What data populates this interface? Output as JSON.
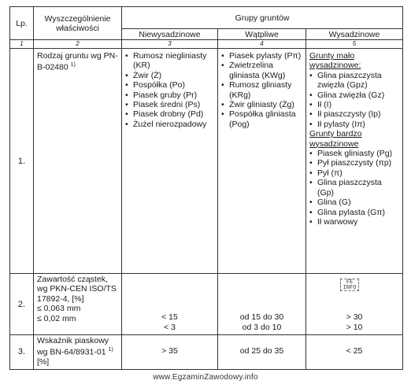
{
  "headers": {
    "lp": "Lp.",
    "properties": "Wyszczególnienie właściwości",
    "soil_groups": "Grupy gruntów",
    "col_non_frost": "Niewysadzinowe",
    "col_doubtful": "Wątpliwe",
    "col_frost": "Wysadzinowe"
  },
  "column_numbers": [
    "1",
    "2",
    "3",
    "4",
    "5"
  ],
  "rows": [
    {
      "lp": "1.",
      "property": "Rodzaj gruntu wg PN-B-02480",
      "property_sup": "1)",
      "non_frost": [
        "Rumosz niegliniasty (KR)",
        "Żwir (Ż)",
        "Pospółka (Po)",
        "Piasek gruby (Pr)",
        "Piasek średni (Ps)",
        "Piasek drobny (Pd)",
        "Żużel nierozpadowy"
      ],
      "doubtful": [
        "Piasek pylasty (Pπ)",
        "Zwietrzelina gliniasta (KWg)",
        "Rumosz gliniasty (KRg)",
        "Żwir gliniasty (Żg)",
        "Pospółka gliniasta (Pog)"
      ],
      "frost_low_heading": "Grunty mało wysadzinowe:",
      "frost_low": [
        "Glina piaszczysta zwięzła (Gpz)",
        "Glina zwięzła (Gz)",
        "Ił (I)",
        "Ił piaszczysty (Ip)",
        "Ił pylasty (Iπ)"
      ],
      "frost_high_heading": "Grunty bardzo wysadzinowe",
      "frost_high": [
        "Piasek gliniasty (Pg)",
        "Pył piaszczysty (πp)",
        "Pył (π)",
        "Glina piaszczysta (Gp)",
        "Glina (G)",
        "Glina pylasta (Gπ)",
        "Ił warwowy"
      ]
    },
    {
      "lp": "2.",
      "property_lines": [
        "Zawartość cząstek,",
        "wg PKN-CEN ISO/TS",
        "17892-4, [%]",
        "≤ 0,063 mm",
        "≤ 0,02 mm"
      ],
      "non_frost": [
        "< 15",
        "< 3"
      ],
      "doubtful": [
        "od 15 do 30",
        "od 3 do 10"
      ],
      "frost": [
        "> 30",
        "> 10"
      ]
    },
    {
      "lp": "3.",
      "property": "Wskaźnik piaskowy wg BN-64/8931-01",
      "property_sup": "1)",
      "property_tail": "[%]",
      "non_frost": "> 35",
      "doubtful": "od 25 do 35",
      "frost": "< 25"
    }
  ],
  "stamp_text": "FE INFO",
  "watermark": "www.EgzaminZawodowy.info"
}
